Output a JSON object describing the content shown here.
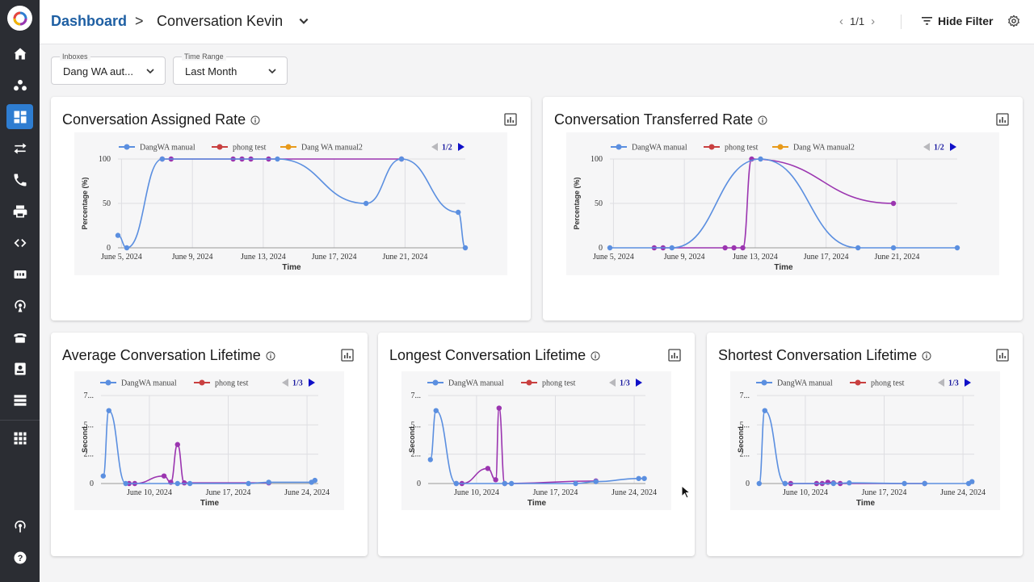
{
  "header": {
    "home": "Dashboard",
    "separator": ">",
    "current": "Conversation Kevin",
    "pager": "1/1",
    "hide_filter": "Hide Filter"
  },
  "filters": [
    {
      "label": "Inboxes",
      "value": "Dang WA aut..."
    },
    {
      "label": "Time Range",
      "value": "Last Month"
    }
  ],
  "sidebar": {
    "items": [
      "home-icon",
      "contacts-icon",
      "dashboard-icon",
      "transfer-icon",
      "phone-icon",
      "printer-icon",
      "code-icon",
      "sip-icon",
      "broadcast-icon",
      "telephone-icon",
      "contact-card-icon",
      "database-icon",
      "apps-icon",
      "podcast-icon",
      "help-icon"
    ],
    "active": "dashboard-icon"
  },
  "colors": {
    "blue": "#5b8fe0",
    "purple": "#9b35b0",
    "red": "#c94040",
    "orange": "#e89a1a",
    "accent": "#2e7dd1"
  },
  "chart_data": [
    {
      "title": "Conversation Assigned Rate",
      "type": "line",
      "legend": [
        "DangWA manual",
        "phong test",
        "Dang WA manual2"
      ],
      "legend_page": "1/2",
      "ylabel": "Percentage (%)",
      "xlabel": "Time",
      "yticks": [
        "100",
        "50",
        "0"
      ],
      "xticks": [
        "June 5, 2024",
        "June 9, 2024",
        "June 13, 2024",
        "June 17, 2024",
        "June 21, 2024"
      ],
      "ylim": [
        0,
        100
      ],
      "xlim": [
        4.8,
        24.4
      ],
      "series": [
        {
          "name": "DangWA manual",
          "x": [
            4.8,
            5.3,
            7.3,
            13.8,
            18.8,
            20.8,
            24.0,
            24.4
          ],
          "values": [
            14,
            0,
            100,
            100,
            50,
            100,
            40,
            0
          ]
        },
        {
          "name": "phong test",
          "x": [
            7.3,
            7.8,
            11.3,
            11.8,
            12.3,
            13.3,
            20.8
          ],
          "values": [
            100,
            100,
            100,
            100,
            100,
            100,
            100
          ]
        }
      ]
    },
    {
      "title": "Conversation Transferred Rate",
      "type": "line",
      "legend": [
        "DangWA manual",
        "phong test",
        "Dang WA manual2"
      ],
      "legend_page": "1/2",
      "ylabel": "Percentage (%)",
      "xlabel": "Time",
      "yticks": [
        "100",
        "50",
        "0"
      ],
      "xticks": [
        "June 5, 2024",
        "June 9, 2024",
        "June 13, 2024",
        "June 17, 2024",
        "June 21, 2024"
      ],
      "ylim": [
        0,
        100
      ],
      "xlim": [
        4.8,
        24.4
      ],
      "series": [
        {
          "name": "DangWA manual",
          "x": [
            4.8,
            8.3,
            13.3,
            18.8,
            20.8,
            24.4
          ],
          "values": [
            0,
            0,
            100,
            0,
            0,
            0
          ]
        },
        {
          "name": "phong test",
          "x": [
            7.3,
            7.8,
            11.3,
            11.8,
            12.3,
            12.8,
            20.8
          ],
          "values": [
            0,
            0,
            0,
            0,
            0,
            100,
            50
          ]
        }
      ]
    },
    {
      "title": "Average Conversation Lifetime",
      "type": "line",
      "legend": [
        "DangWA manual",
        "phong test"
      ],
      "legend_page": "1/3",
      "ylabel": "Second",
      "xlabel": "Time",
      "yticks": [
        "7...",
        "5...",
        "2...",
        "0"
      ],
      "xticks": [
        "June 10, 2024",
        "June 17, 2024",
        "June 24, 2024"
      ],
      "ylim": [
        0,
        7
      ],
      "xlim": [
        5.7,
        25.0
      ],
      "series": [
        {
          "name": "DangWA manual",
          "x": [
            5.9,
            6.4,
            7.9,
            12.5,
            13.6,
            18.8,
            20.6,
            24.4,
            24.7
          ],
          "values": [
            0.6,
            5.8,
            0,
            0,
            0,
            0,
            0.1,
            0.1,
            0.25
          ]
        },
        {
          "name": "phong test",
          "x": [
            8.2,
            8.7,
            11.3,
            11.9,
            12.5,
            13.1,
            20.6
          ],
          "values": [
            0,
            0,
            0.6,
            0.1,
            3.1,
            0.05,
            0.05
          ]
        }
      ]
    },
    {
      "title": "Longest Conversation Lifetime",
      "type": "line",
      "legend": [
        "DangWA manual",
        "phong test"
      ],
      "legend_page": "1/3",
      "ylabel": "Second",
      "xlabel": "Time",
      "yticks": [
        "7...",
        "5...",
        "2...",
        "0"
      ],
      "xticks": [
        "June 10, 2024",
        "June 17, 2024",
        "June 24, 2024"
      ],
      "ylim": [
        0,
        7
      ],
      "xlim": [
        5.7,
        25.0
      ],
      "series": [
        {
          "name": "DangWA manual",
          "x": [
            5.9,
            6.4,
            8.2,
            12.5,
            13.1,
            18.8,
            20.6,
            24.4,
            24.9
          ],
          "values": [
            1.9,
            5.8,
            0,
            0,
            0,
            0,
            0.15,
            0.4,
            0.4
          ]
        },
        {
          "name": "phong test",
          "x": [
            8.2,
            8.7,
            11.0,
            11.7,
            12.0,
            12.5,
            20.6
          ],
          "values": [
            0,
            0,
            1.2,
            0.3,
            6.0,
            0,
            0.2
          ]
        }
      ]
    },
    {
      "title": "Shortest Conversation Lifetime",
      "type": "line",
      "legend": [
        "DangWA manual",
        "phong test"
      ],
      "legend_page": "1/3",
      "ylabel": "Second",
      "xlabel": "Time",
      "yticks": [
        "7...",
        "5...",
        "2...",
        "0"
      ],
      "xticks": [
        "June 10, 2024",
        "June 17, 2024",
        "June 24, 2024"
      ],
      "ylim": [
        0,
        7
      ],
      "xlim": [
        5.7,
        25.0
      ],
      "series": [
        {
          "name": "DangWA manual",
          "x": [
            5.9,
            6.4,
            8.2,
            12.5,
            13.9,
            18.8,
            20.6,
            24.5,
            24.8
          ],
          "values": [
            0,
            5.8,
            0,
            0,
            0.05,
            0,
            0,
            0,
            0.15
          ]
        },
        {
          "name": "phong test",
          "x": [
            8.2,
            8.7,
            11.0,
            11.5,
            12.0,
            12.5,
            13.1,
            20.6
          ],
          "values": [
            0,
            0,
            0,
            0,
            0.1,
            0.05,
            0,
            0
          ]
        }
      ]
    }
  ]
}
